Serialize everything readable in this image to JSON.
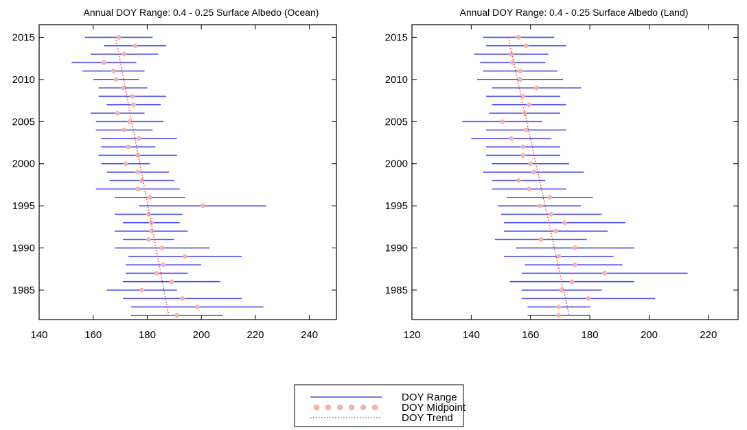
{
  "chart_data": [
    {
      "type": "errorbar",
      "title": "Annual DOY Range: 0.4 - 0.25 Surface Albedo (Ocean)",
      "xlabel": "",
      "ylabel": "",
      "xlim": [
        140,
        250
      ],
      "ylim": [
        1981.5,
        2016.5
      ],
      "xticks": [
        140,
        160,
        180,
        200,
        220,
        240
      ],
      "yticks": [
        1985,
        1990,
        1995,
        2000,
        2005,
        2010,
        2015
      ],
      "grid": false,
      "years": [
        2015,
        2014,
        2013,
        2012,
        2011,
        2010,
        2009,
        2008,
        2007,
        2006,
        2005,
        2004,
        2003,
        2002,
        2001,
        2000,
        1999,
        1998,
        1997,
        1996,
        1995,
        1994,
        1993,
        1992,
        1991,
        1990,
        1989,
        1988,
        1987,
        1986,
        1985,
        1984,
        1983,
        1982
      ],
      "series": [
        {
          "name": "DOY Range",
          "low": [
            157,
            164,
            159,
            152,
            156,
            160,
            162,
            162,
            165,
            159,
            161,
            161,
            163,
            163,
            162,
            163,
            165,
            166,
            161,
            168,
            177,
            168,
            171,
            168,
            171,
            168,
            173,
            172,
            172,
            171,
            165,
            171,
            174,
            174
          ],
          "high": [
            182,
            187,
            184,
            176,
            179,
            177,
            180,
            187,
            185,
            179,
            186,
            182,
            191,
            183,
            191,
            181,
            188,
            190,
            192,
            194,
            224,
            193,
            192,
            195,
            190,
            203,
            215,
            200,
            195,
            207,
            191,
            215,
            223,
            208
          ]
        },
        {
          "name": "DOY Midpoint",
          "values": [
            169.5,
            175.5,
            171.5,
            164,
            167.5,
            168.5,
            171,
            174.5,
            175,
            169,
            173.5,
            171.5,
            177,
            173,
            176.5,
            172,
            176.5,
            178,
            176.5,
            181,
            200.5,
            180.5,
            181.5,
            181.5,
            180.5,
            185.5,
            194,
            186,
            183.5,
            189,
            178,
            193,
            198.5,
            191
          ]
        },
        {
          "name": "DOY Trend",
          "x_start": 168.3,
          "x_end": 188.0
        }
      ]
    },
    {
      "type": "errorbar",
      "title": "Annual DOY Range: 0.4 - 0.25 Surface Albedo (Land)",
      "xlabel": "",
      "ylabel": "",
      "xlim": [
        120,
        230
      ],
      "ylim": [
        1981.5,
        2016.5
      ],
      "xticks": [
        120,
        140,
        160,
        180,
        200,
        220
      ],
      "yticks": [
        1985,
        1990,
        1995,
        2000,
        2005,
        2010,
        2015
      ],
      "grid": false,
      "years": [
        2015,
        2014,
        2013,
        2012,
        2011,
        2010,
        2009,
        2008,
        2007,
        2006,
        2005,
        2004,
        2003,
        2002,
        2001,
        2000,
        1999,
        1998,
        1997,
        1996,
        1995,
        1994,
        1993,
        1992,
        1991,
        1990,
        1989,
        1988,
        1987,
        1986,
        1985,
        1984,
        1983,
        1982
      ],
      "series": [
        {
          "name": "DOY Range",
          "low": [
            144,
            145,
            141,
            143,
            144,
            142,
            147,
            145,
            147,
            146,
            137,
            145,
            140,
            145,
            145,
            147,
            144,
            147,
            147,
            152,
            149,
            150,
            151,
            151,
            148,
            155,
            151,
            158,
            157,
            153,
            157,
            157,
            159,
            159
          ],
          "high": [
            168,
            172,
            166,
            165,
            169,
            171,
            177,
            170,
            172,
            170,
            164,
            172,
            167,
            170,
            170,
            173,
            178,
            165,
            172,
            181,
            177,
            184,
            192,
            186,
            179,
            195,
            188,
            191,
            213,
            195,
            184,
            202,
            180,
            180
          ]
        },
        {
          "name": "DOY Midpoint",
          "values": [
            156,
            158.5,
            153.5,
            154,
            156.5,
            156.5,
            162,
            157.5,
            159.5,
            158,
            150.5,
            158.5,
            153.5,
            157.5,
            157.5,
            160,
            161,
            156,
            159.5,
            166.5,
            163,
            167,
            171.5,
            168.5,
            163.5,
            175,
            169.5,
            175,
            185,
            174,
            170.5,
            179.5,
            169.5,
            169.5
          ]
        },
        {
          "name": "DOY Trend",
          "x_start": 152.5,
          "x_end": 173.0
        }
      ]
    }
  ],
  "legend": {
    "items": [
      {
        "label": "DOY Range",
        "symbol": "line"
      },
      {
        "label": "DOY Midpoint",
        "symbol": "dots"
      },
      {
        "label": "DOY Trend",
        "symbol": "dotted"
      }
    ]
  },
  "colors": {
    "range": "#4a4af0",
    "midpoint": "#f5b3a8",
    "trend": "#e83030",
    "axes": "#000000"
  }
}
